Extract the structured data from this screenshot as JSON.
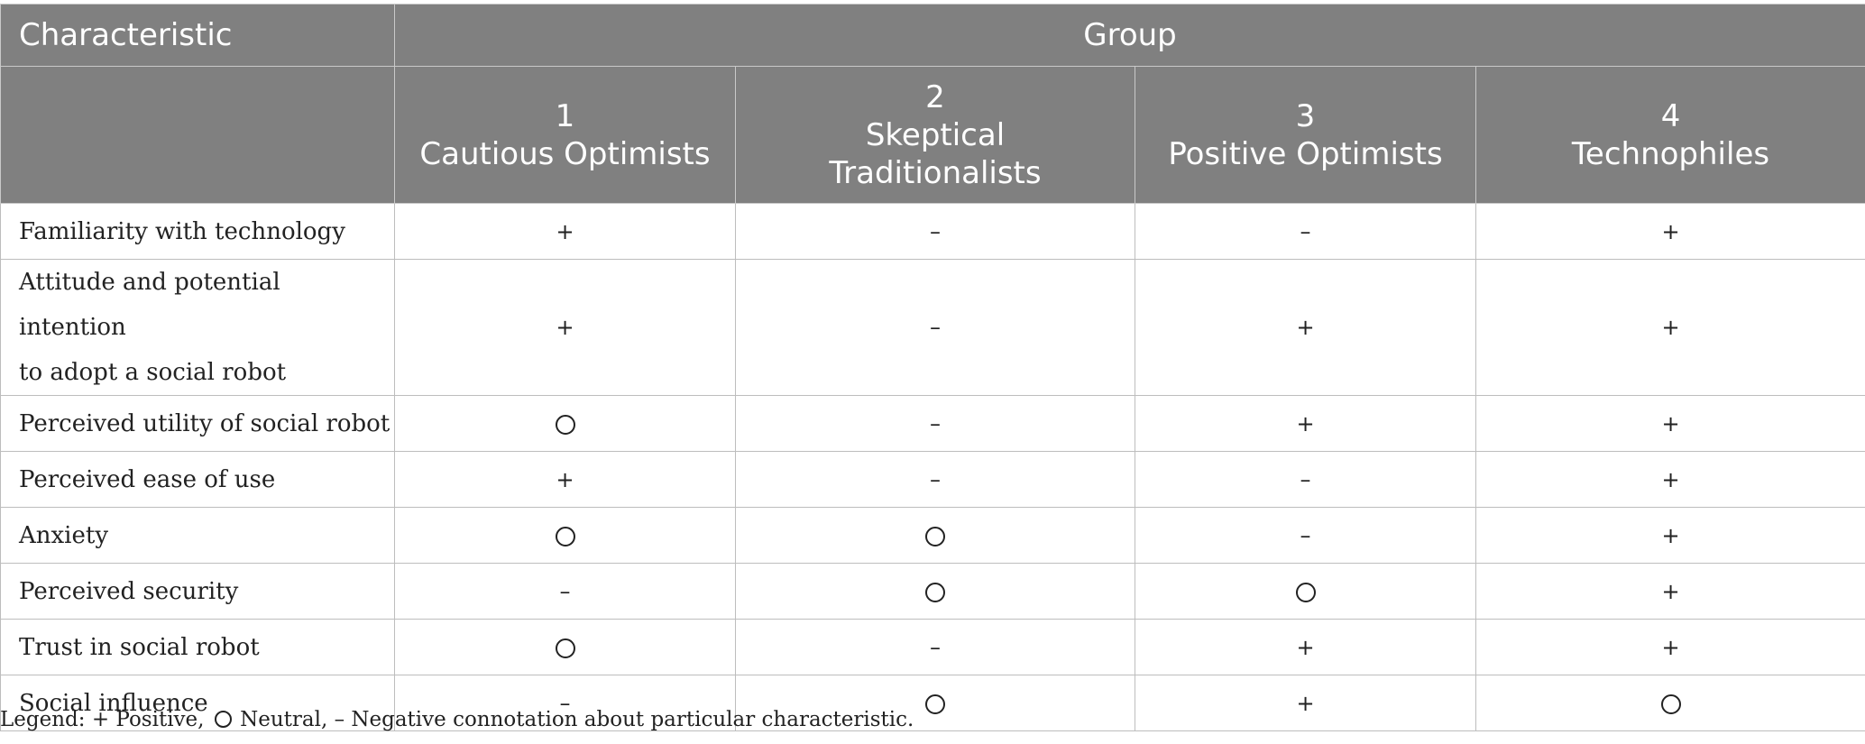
{
  "header": {
    "characteristic": "Characteristic",
    "group": "Group",
    "columns": [
      {
        "number": "1",
        "line1": "Cautious Optimists",
        "line2": ""
      },
      {
        "number": "2",
        "line1": "Skeptical",
        "line2": "Traditionalists"
      },
      {
        "number": "3",
        "line1": "Positive Optimists",
        "line2": ""
      },
      {
        "number": "4",
        "line1": "Technophiles",
        "line2": ""
      }
    ]
  },
  "symbols": {
    "positive": "+",
    "negative": "–",
    "neutral": "circle"
  },
  "rows": [
    {
      "label": "Familiarity with technology",
      "label_line2": "",
      "values": [
        "+",
        "–",
        "–",
        "+"
      ]
    },
    {
      "label": "Attitude and potential intention",
      "label_line2": "to adopt a social robot",
      "values": [
        "+",
        "–",
        "+",
        "+"
      ]
    },
    {
      "label": "Perceived utility of social robot",
      "label_line2": "",
      "values": [
        "○",
        "–",
        "+",
        "+"
      ]
    },
    {
      "label": "Perceived ease of use",
      "label_line2": "",
      "values": [
        "+",
        "–",
        "–",
        "+"
      ]
    },
    {
      "label": "Anxiety",
      "label_line2": "",
      "values": [
        "○",
        "○",
        "–",
        "+"
      ]
    },
    {
      "label": "Perceived security",
      "label_line2": "",
      "values": [
        "–",
        "○",
        "○",
        "+"
      ]
    },
    {
      "label": "Trust in social robot",
      "label_line2": "",
      "values": [
        "○",
        "–",
        "+",
        "+"
      ]
    },
    {
      "label": "Social influence",
      "label_line2": "",
      "values": [
        "–",
        "○",
        "+",
        "○"
      ]
    }
  ],
  "legend": {
    "prefix": "Legend: + Positive,",
    "neutral_text": "Neutral, – Negative connotation about particular characteristic."
  },
  "colors": {
    "header_bg": "#808080",
    "header_text": "#ffffff",
    "border": "#bdbdbd"
  }
}
